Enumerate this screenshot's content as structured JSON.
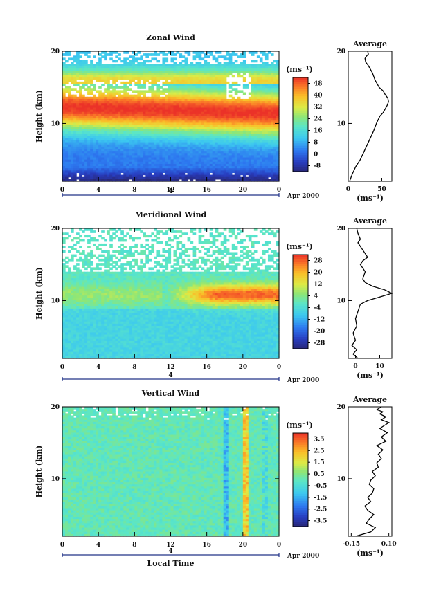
{
  "figure": {
    "xlabel": "Local Time",
    "date_label": "Apr 2000",
    "day_label": "4",
    "unit_label": "(ms⁻¹)",
    "ylabel": "Height (km)"
  },
  "chart_data": [
    {
      "type": "heatmap",
      "title": "Zonal Wind",
      "xlabel": "",
      "ylabel": "Height (km)",
      "x_ticks": [
        "0",
        "4",
        "8",
        "12",
        "16",
        "20",
        "0"
      ],
      "y_ticks": [
        "20",
        "10"
      ],
      "xlim": [
        0,
        24
      ],
      "ylim": [
        2,
        20
      ],
      "colorbar": {
        "label": "(ms⁻¹)",
        "ticks": [
          "48",
          "40",
          "32",
          "24",
          "16",
          "8",
          "0",
          "-8"
        ],
        "range": [
          -12,
          52
        ]
      },
      "z_description": "Westerly jet peaking near 12 km; weak/negative winds below 4 km; white gaps where no data"
    },
    {
      "type": "line",
      "title": "Average",
      "xlabel": "(ms⁻¹)",
      "ylabel": "",
      "x_ticks": [
        "0",
        "50"
      ],
      "y_ticks": [
        "20",
        "10"
      ],
      "xlim": [
        0,
        65
      ],
      "ylim": [
        2,
        20
      ],
      "series": [
        {
          "x": [
            2,
            6,
            11,
            18,
            23,
            28,
            33,
            38,
            42,
            47,
            52,
            55,
            58,
            60,
            59,
            55,
            52,
            46,
            40,
            36,
            30,
            26,
            25,
            27,
            30,
            29
          ],
          "y": [
            2,
            3,
            4,
            5,
            6,
            7,
            8,
            9,
            10,
            11,
            11.5,
            12,
            12.5,
            13,
            13.5,
            14,
            14.5,
            15,
            16,
            17,
            18,
            18.5,
            19,
            19.3,
            19.6,
            20
          ]
        }
      ]
    },
    {
      "type": "heatmap",
      "title": "Meridional Wind",
      "xlabel": "",
      "ylabel": "Height (km)",
      "x_ticks": [
        "0",
        "4",
        "8",
        "12",
        "16",
        "20",
        "0"
      ],
      "y_ticks": [
        "20",
        "10"
      ],
      "xlim": [
        0,
        24
      ],
      "ylim": [
        2,
        20
      ],
      "colorbar": {
        "label": "(ms⁻¹)",
        "ticks": [
          "28",
          "20",
          "12",
          "4",
          "-4",
          "-12",
          "-20",
          "-28"
        ],
        "range": [
          -32,
          32
        ]
      },
      "z_description": "Southerly maximum near 11 km after 12 LT; weak northerly below 9 km"
    },
    {
      "type": "line",
      "title": "Average",
      "xlabel": "(ms⁻¹)",
      "ylabel": "",
      "x_ticks": [
        "0",
        "10"
      ],
      "y_ticks": [
        "20",
        "10"
      ],
      "xlim": [
        -3,
        15
      ],
      "ylim": [
        2,
        20
      ],
      "series": [
        {
          "x": [
            1,
            -1,
            0.5,
            -1.5,
            0,
            -1,
            0.5,
            0,
            1,
            2,
            5,
            10,
            15,
            12,
            7,
            4,
            3,
            4,
            2,
            3,
            5,
            3,
            1,
            2,
            1,
            0.5
          ],
          "y": [
            2,
            2.6,
            3.2,
            3.8,
            4.5,
            5.5,
            6.5,
            7.5,
            8.5,
            9.5,
            10,
            10.5,
            11,
            11.5,
            12,
            12.5,
            13,
            14,
            15,
            15.5,
            16,
            17,
            18,
            18.5,
            19.3,
            20
          ]
        }
      ]
    },
    {
      "type": "heatmap",
      "title": "Vertical Wind",
      "xlabel": "Local Time",
      "ylabel": "Height (km)",
      "x_ticks": [
        "0",
        "4",
        "8",
        "12",
        "16",
        "20",
        "0"
      ],
      "y_ticks": [
        "20",
        "10"
      ],
      "xlim": [
        0,
        24
      ],
      "ylim": [
        2,
        20
      ],
      "colorbar": {
        "label": "(ms⁻¹)",
        "ticks": [
          "3.5",
          "2.5",
          "1.5",
          "0.5",
          "-0.5",
          "-1.5",
          "-2.5",
          "-3.5"
        ],
        "range": [
          -4,
          4
        ]
      },
      "z_description": "Mostly near-zero (cyan/green) with a negative column near 18 LT and positive columns near 20-22 LT"
    },
    {
      "type": "line",
      "title": "Average",
      "xlabel": "(ms⁻¹)",
      "ylabel": "",
      "x_ticks": [
        "-0.15",
        "0.10"
      ],
      "y_ticks": [
        "20",
        "10"
      ],
      "xlim": [
        -0.17,
        0.12
      ],
      "ylim": [
        2,
        20
      ],
      "series": [
        {
          "x": [
            -0.12,
            -0.02,
            0.01,
            -0.05,
            -0.03,
            0.0,
            -0.04,
            -0.06,
            -0.02,
            -0.04,
            -0.01,
            0.0,
            -0.03,
            -0.02,
            0.01,
            -0.01,
            0.03,
            0.02,
            0.05,
            0.03,
            0.06,
            0.02,
            0.08,
            0.05,
            0.09,
            0.04,
            0.07,
            0.1,
            0.05,
            0.08,
            0.04,
            0.06,
            0.02,
            0.05
          ],
          "y": [
            2,
            2.6,
            3.2,
            3.8,
            4.4,
            5,
            5.6,
            6.2,
            6.8,
            7.4,
            8,
            8.6,
            9.2,
            9.8,
            10.4,
            11,
            11.6,
            12.2,
            12.8,
            13.4,
            14,
            14.6,
            15.2,
            15.8,
            16.4,
            17,
            17.4,
            17.8,
            18.2,
            18.6,
            19,
            19.3,
            19.6,
            20
          ]
        }
      ]
    }
  ]
}
